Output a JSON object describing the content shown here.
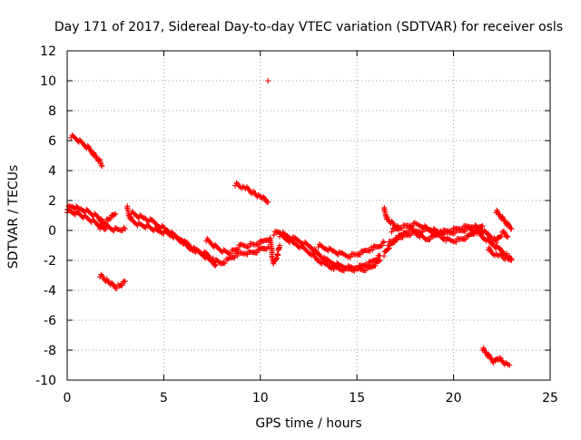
{
  "chart_data": {
    "type": "scatter",
    "title": "Day 171 of 2017, Sidereal Day-to-day VTEC variation (SDTVAR) for receiver osls",
    "xlabel": "GPS time / hours",
    "ylabel": "SDTVAR / TECUs",
    "xlim": [
      0,
      25
    ],
    "ylim": [
      -10,
      12
    ],
    "x_ticks": [
      0,
      5,
      10,
      15,
      20,
      25
    ],
    "y_ticks": [
      -10,
      -8,
      -6,
      -4,
      -2,
      0,
      2,
      4,
      6,
      8,
      10,
      12
    ],
    "grid": true,
    "marker": "+",
    "series": [
      {
        "name": "SDTVAR",
        "color": "#ff0000",
        "segments": [
          {
            "name": "main-track-upper",
            "points": [
              [
                0.0,
                1.5
              ],
              [
                0.3,
                1.6
              ],
              [
                0.7,
                1.4
              ],
              [
                1.0,
                1.3
              ],
              [
                1.3,
                1.1
              ],
              [
                1.6,
                0.9
              ],
              [
                1.8,
                0.6
              ],
              [
                2.0,
                0.3
              ],
              [
                2.3,
                0.1
              ],
              [
                2.6,
                0.05
              ],
              [
                3.0,
                0.1
              ]
            ]
          },
          {
            "name": "main-track-lower",
            "points": [
              [
                0.0,
                1.3
              ],
              [
                0.3,
                1.2
              ],
              [
                0.6,
                1.1
              ],
              [
                0.9,
                0.9
              ],
              [
                1.2,
                0.7
              ],
              [
                1.5,
                0.5
              ],
              [
                1.7,
                0.3
              ],
              [
                2.0,
                0.1
              ]
            ]
          },
          {
            "name": "short-rise-2",
            "points": [
              [
                1.7,
                0.2
              ],
              [
                1.9,
                0.5
              ],
              [
                2.1,
                0.7
              ],
              [
                2.3,
                0.9
              ],
              [
                2.5,
                1.1
              ]
            ]
          },
          {
            "name": "high-decline-0",
            "points": [
              [
                0.2,
                6.3
              ],
              [
                0.5,
                6.1
              ],
              [
                0.8,
                5.8
              ],
              [
                1.1,
                5.5
              ],
              [
                1.3,
                5.2
              ],
              [
                1.5,
                4.9
              ],
              [
                1.7,
                4.6
              ],
              [
                1.8,
                4.3
              ]
            ]
          },
          {
            "name": "low-dip-2",
            "points": [
              [
                1.7,
                -3.0
              ],
              [
                1.9,
                -3.2
              ],
              [
                2.1,
                -3.4
              ],
              [
                2.3,
                -3.6
              ],
              [
                2.5,
                -3.8
              ],
              [
                2.7,
                -3.7
              ],
              [
                2.9,
                -3.5
              ],
              [
                3.0,
                -3.4
              ]
            ]
          },
          {
            "name": "mid-a",
            "points": [
              [
                3.1,
                1.6
              ],
              [
                3.2,
                1.0
              ],
              [
                3.4,
                0.6
              ],
              [
                3.7,
                0.4
              ],
              [
                4.0,
                0.3
              ],
              [
                4.3,
                0.2
              ],
              [
                4.6,
                0.0
              ],
              [
                5.0,
                -0.1
              ],
              [
                5.4,
                -0.3
              ],
              [
                5.8,
                -0.6
              ],
              [
                6.2,
                -0.9
              ],
              [
                6.6,
                -1.3
              ],
              [
                7.0,
                -1.6
              ],
              [
                7.4,
                -2.0
              ],
              [
                7.7,
                -2.3
              ]
            ]
          },
          {
            "name": "mid-b",
            "points": [
              [
                3.3,
                1.2
              ],
              [
                3.6,
                1.0
              ],
              [
                4.0,
                0.8
              ],
              [
                4.4,
                0.6
              ],
              [
                4.8,
                0.3
              ],
              [
                5.2,
                0.0
              ],
              [
                5.6,
                -0.4
              ],
              [
                6.0,
                -0.8
              ],
              [
                6.4,
                -1.2
              ],
              [
                6.8,
                -1.4
              ],
              [
                7.2,
                -1.6
              ],
              [
                7.6,
                -2.0
              ],
              [
                8.0,
                -2.2
              ],
              [
                8.4,
                -1.9
              ],
              [
                8.8,
                -1.6
              ],
              [
                9.2,
                -1.5
              ],
              [
                9.6,
                -1.5
              ],
              [
                10.0,
                -1.3
              ],
              [
                10.4,
                -1.1
              ]
            ]
          },
          {
            "name": "mid-c",
            "points": [
              [
                7.2,
                -0.6
              ],
              [
                7.5,
                -0.9
              ],
              [
                7.8,
                -1.2
              ],
              [
                8.1,
                -1.4
              ],
              [
                8.4,
                -1.5
              ],
              [
                8.7,
                -1.3
              ],
              [
                9.0,
                -1.0
              ],
              [
                9.4,
                -1.0
              ],
              [
                9.8,
                -0.9
              ],
              [
                10.2,
                -0.7
              ],
              [
                10.5,
                -0.5
              ]
            ]
          },
          {
            "name": "isolated-high-9",
            "points": [
              [
                8.7,
                3.1
              ],
              [
                8.9,
                3.0
              ],
              [
                9.1,
                2.9
              ],
              [
                9.3,
                2.8
              ],
              [
                9.5,
                2.6
              ],
              [
                9.7,
                2.5
              ],
              [
                9.9,
                2.3
              ],
              [
                10.1,
                2.2
              ],
              [
                10.3,
                2.0
              ],
              [
                10.4,
                1.9
              ]
            ]
          },
          {
            "name": "outlier",
            "points": [
              [
                10.4,
                10.0
              ]
            ]
          },
          {
            "name": "drop-10-5",
            "points": [
              [
                10.5,
                -0.6
              ],
              [
                10.6,
                -1.2
              ],
              [
                10.6,
                -1.8
              ],
              [
                10.7,
                -2.2
              ],
              [
                10.9,
                -1.6
              ],
              [
                11.0,
                -1.0
              ]
            ]
          },
          {
            "name": "mid-d",
            "points": [
              [
                10.7,
                -0.2
              ],
              [
                11.0,
                -0.1
              ],
              [
                11.4,
                -0.4
              ],
              [
                11.8,
                -0.6
              ],
              [
                12.2,
                -0.8
              ],
              [
                12.6,
                -1.1
              ],
              [
                13.0,
                -1.6
              ],
              [
                13.4,
                -2.0
              ],
              [
                13.8,
                -2.2
              ],
              [
                14.2,
                -2.4
              ],
              [
                14.6,
                -2.5
              ],
              [
                15.0,
                -2.5
              ],
              [
                15.4,
                -2.3
              ],
              [
                15.8,
                -2.1
              ],
              [
                16.2,
                -1.7
              ]
            ]
          },
          {
            "name": "mid-e",
            "points": [
              [
                11.0,
                -0.3
              ],
              [
                11.4,
                -0.6
              ],
              [
                11.8,
                -0.9
              ],
              [
                12.2,
                -1.2
              ],
              [
                12.6,
                -1.5
              ],
              [
                13.0,
                -2.0
              ],
              [
                13.4,
                -2.3
              ],
              [
                13.8,
                -2.5
              ],
              [
                14.2,
                -2.6
              ],
              [
                14.6,
                -2.6
              ],
              [
                15.0,
                -2.6
              ],
              [
                15.4,
                -2.6
              ],
              [
                15.8,
                -2.4
              ],
              [
                16.2,
                -2.0
              ]
            ]
          },
          {
            "name": "mid-f",
            "points": [
              [
                13.0,
                -1.0
              ],
              [
                13.4,
                -1.2
              ],
              [
                13.8,
                -1.4
              ],
              [
                14.2,
                -1.6
              ],
              [
                14.6,
                -1.7
              ],
              [
                15.0,
                -1.6
              ],
              [
                15.4,
                -1.4
              ],
              [
                15.8,
                -1.2
              ],
              [
                16.2,
                -1.0
              ],
              [
                16.4,
                -0.8
              ]
            ]
          },
          {
            "name": "spike-16",
            "points": [
              [
                16.4,
                1.5
              ],
              [
                16.5,
                1.0
              ],
              [
                16.6,
                0.7
              ],
              [
                16.8,
                0.5
              ],
              [
                17.0,
                0.3
              ],
              [
                17.2,
                0.1
              ]
            ]
          },
          {
            "name": "low-16",
            "points": [
              [
                16.4,
                -1.6
              ],
              [
                16.6,
                -1.2
              ],
              [
                16.8,
                -0.9
              ],
              [
                17.0,
                -0.6
              ],
              [
                17.3,
                -0.4
              ],
              [
                17.6,
                -0.3
              ],
              [
                18.0,
                -0.1
              ],
              [
                18.4,
                0.0
              ],
              [
                18.8,
                0.1
              ],
              [
                19.2,
                -0.1
              ],
              [
                19.6,
                -0.2
              ],
              [
                20.0,
                -0.1
              ],
              [
                20.4,
                0.0
              ],
              [
                20.8,
                0.1
              ],
              [
                21.2,
                -0.1
              ],
              [
                21.6,
                -0.5
              ],
              [
                22.0,
                -0.9
              ],
              [
                22.4,
                -1.3
              ],
              [
                22.8,
                -1.7
              ],
              [
                23.0,
                -2.0
              ]
            ]
          },
          {
            "name": "upper-17",
            "points": [
              [
                16.8,
                0.0
              ],
              [
                17.2,
                0.2
              ],
              [
                17.6,
                0.3
              ],
              [
                18.0,
                0.4
              ],
              [
                18.4,
                0.3
              ],
              [
                18.8,
                0.0
              ],
              [
                19.2,
                -0.3
              ],
              [
                19.6,
                -0.6
              ],
              [
                20.0,
                -0.7
              ],
              [
                20.4,
                -0.6
              ],
              [
                20.8,
                -0.4
              ],
              [
                21.2,
                0.0
              ],
              [
                21.5,
                0.3
              ]
            ]
          },
          {
            "name": "wave-17",
            "points": [
              [
                16.6,
                -0.9
              ],
              [
                17.0,
                -0.6
              ],
              [
                17.4,
                -0.2
              ],
              [
                17.8,
                0.1
              ],
              [
                18.2,
                -0.3
              ],
              [
                18.6,
                -0.6
              ],
              [
                19.0,
                -0.4
              ],
              [
                19.4,
                -0.1
              ],
              [
                19.8,
                0.0
              ],
              [
                20.2,
                0.1
              ],
              [
                20.6,
                0.2
              ],
              [
                21.0,
                0.3
              ],
              [
                21.4,
                0.1
              ],
              [
                21.8,
                -0.3
              ],
              [
                22.2,
                -0.7
              ]
            ]
          },
          {
            "name": "drop-22",
            "points": [
              [
                21.8,
                -1.2
              ],
              [
                22.0,
                -1.5
              ],
              [
                22.2,
                -1.6
              ],
              [
                22.4,
                -1.7
              ],
              [
                22.6,
                -1.8
              ],
              [
                22.8,
                -1.9
              ],
              [
                23.0,
                -1.9
              ]
            ]
          },
          {
            "name": "rise-22",
            "points": [
              [
                22.2,
                -0.7
              ],
              [
                22.4,
                -0.4
              ],
              [
                22.6,
                -0.1
              ],
              [
                22.8,
                -0.4
              ]
            ]
          },
          {
            "name": "mid-22",
            "points": [
              [
                22.2,
                1.3
              ],
              [
                22.4,
                1.0
              ],
              [
                22.6,
                0.7
              ],
              [
                22.8,
                0.4
              ],
              [
                23.0,
                0.1
              ]
            ]
          },
          {
            "name": "bottom-21",
            "points": [
              [
                21.5,
                -7.9
              ],
              [
                21.7,
                -8.2
              ],
              [
                21.9,
                -8.5
              ],
              [
                22.1,
                -8.8
              ],
              [
                22.3,
                -8.5
              ],
              [
                22.5,
                -8.7
              ],
              [
                22.7,
                -8.9
              ],
              [
                22.9,
                -9.0
              ]
            ]
          }
        ]
      }
    ]
  }
}
